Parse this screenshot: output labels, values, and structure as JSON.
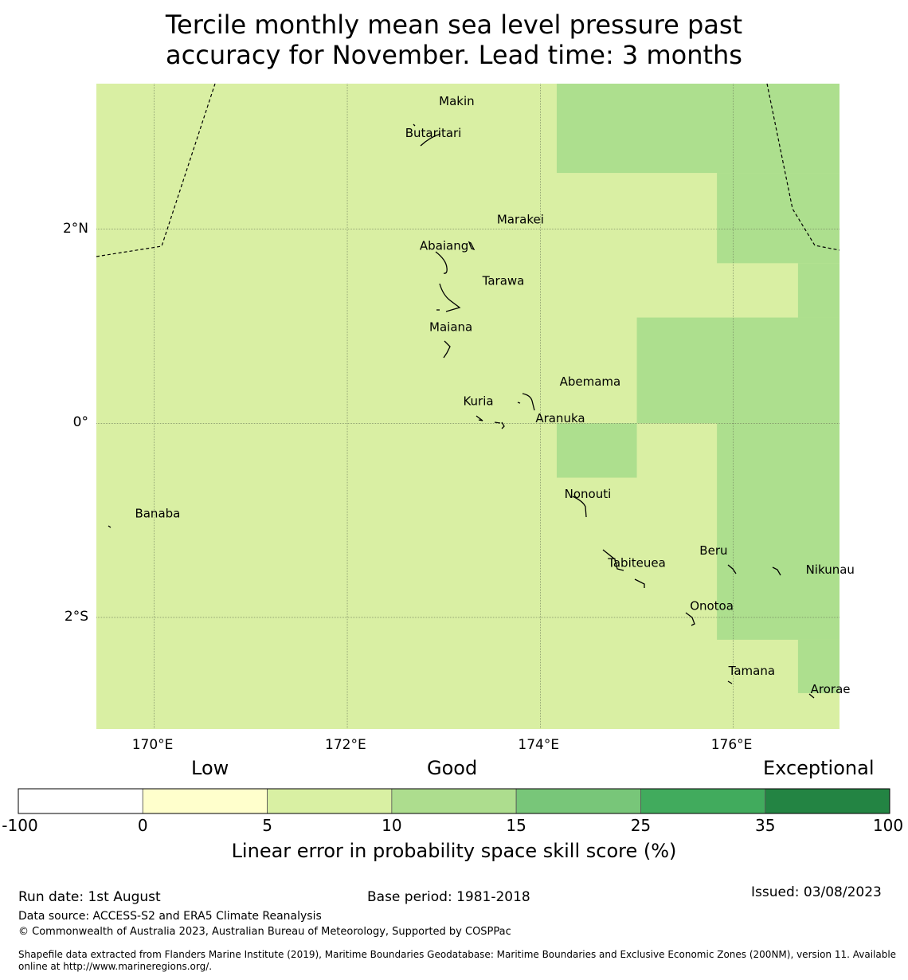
{
  "title_line1": "Tercile monthly mean sea level pressure past",
  "title_line2": "accuracy for November. Lead time: 3 months",
  "map": {
    "lon_range": [
      169.4,
      177.1
    ],
    "lat_range": [
      -3.15,
      3.5
    ],
    "lon_ticks": [
      {
        "value": 170,
        "label": "170°E"
      },
      {
        "value": 172,
        "label": "172°E"
      },
      {
        "value": 174,
        "label": "174°E"
      },
      {
        "value": 176,
        "label": "176°E"
      }
    ],
    "lat_ticks": [
      {
        "value": 2,
        "label": "2°N"
      },
      {
        "value": 0,
        "label": "0°"
      },
      {
        "value": -2,
        "label": "2°S"
      }
    ],
    "background_color": "#d9efa3",
    "good_color": "#addf8e",
    "skill_cells": [
      {
        "lon": [
          174.17,
          177.1
        ],
        "lat": [
          2.58,
          3.5
        ],
        "class": "10-15"
      },
      {
        "lon": [
          175.83,
          177.1
        ],
        "lat": [
          1.65,
          2.58
        ],
        "class": "10-15"
      },
      {
        "lon": [
          176.67,
          177.1
        ],
        "lat": [
          1.09,
          1.65
        ],
        "class": "10-15"
      },
      {
        "lon": [
          175.0,
          177.1
        ],
        "lat": [
          0.0,
          1.09
        ],
        "class": "10-15"
      },
      {
        "lon": [
          174.17,
          175.0
        ],
        "lat": [
          -0.56,
          0.0
        ],
        "class": "10-15"
      },
      {
        "lon": [
          175.83,
          177.1
        ],
        "lat": [
          -2.23,
          0.0
        ],
        "class": "10-15"
      },
      {
        "lon": [
          176.67,
          177.1
        ],
        "lat": [
          -2.78,
          -2.23
        ],
        "class": "10-15"
      }
    ],
    "places": [
      {
        "name": "Makin",
        "lon": 172.95,
        "lat": 3.32
      },
      {
        "name": "Butaritari",
        "lon": 172.6,
        "lat": 2.99
      },
      {
        "name": "Marakei",
        "lon": 173.55,
        "lat": 2.1
      },
      {
        "name": "Abaiang",
        "lon": 172.75,
        "lat": 1.83
      },
      {
        "name": "Tarawa",
        "lon": 173.4,
        "lat": 1.47
      },
      {
        "name": "Maiana",
        "lon": 172.85,
        "lat": 0.99
      },
      {
        "name": "Abemama",
        "lon": 174.2,
        "lat": 0.43
      },
      {
        "name": "Kuria",
        "lon": 173.2,
        "lat": 0.23
      },
      {
        "name": "Aranuka",
        "lon": 173.95,
        "lat": 0.05
      },
      {
        "name": "Nonouti",
        "lon": 174.25,
        "lat": -0.73
      },
      {
        "name": "Banaba",
        "lon": 169.8,
        "lat": -0.93
      },
      {
        "name": "Beru",
        "lon": 175.65,
        "lat": -1.31
      },
      {
        "name": "Tabiteuea",
        "lon": 174.7,
        "lat": -1.44
      },
      {
        "name": "Nikunau",
        "lon": 176.75,
        "lat": -1.51
      },
      {
        "name": "Onotoa",
        "lon": 175.55,
        "lat": -1.88
      },
      {
        "name": "Tamana",
        "lon": 175.95,
        "lat": -2.55
      },
      {
        "name": "Arorae",
        "lon": 176.8,
        "lat": -2.74
      }
    ]
  },
  "colorbar": {
    "categories": [
      {
        "label": "Low"
      },
      {
        "label": "Good"
      },
      {
        "label": "Exceptional"
      }
    ],
    "bins": [
      {
        "from": -100,
        "to": 0,
        "color": "#ffffff"
      },
      {
        "from": 0,
        "to": 5,
        "color": "#ffffcc"
      },
      {
        "from": 5,
        "to": 10,
        "color": "#d9f0a3"
      },
      {
        "from": 10,
        "to": 15,
        "color": "#addd8e"
      },
      {
        "from": 15,
        "to": 25,
        "color": "#78c679"
      },
      {
        "from": 25,
        "to": 35,
        "color": "#41ab5d"
      },
      {
        "from": 35,
        "to": 100,
        "color": "#238443"
      }
    ],
    "ticks": [
      "-100",
      "0",
      "5",
      "10",
      "15",
      "25",
      "35",
      "100"
    ],
    "label": "Linear error in probability space skill score (%)"
  },
  "footer": {
    "run_date": "Run date: 1st August",
    "base_period": "Base period: 1981-2018",
    "issued": "Issued: 03/08/2023",
    "data_source": "Data source: ACCESS-S2 and ERA5 Climate Reanalysis",
    "copyright": "© Commonwealth of Australia 2023, Australian Bureau of Meteorology, Supported by COSPPac",
    "shapefile_line1": "Shapefile data extracted from Flanders Marine Institute (2019), Maritime Boundaries Geodatabase: Maritime Boundaries and Exclusive Economic Zones (200NM), version 11. Available",
    "shapefile_line2": "online at http://www.marineregions.org/."
  }
}
